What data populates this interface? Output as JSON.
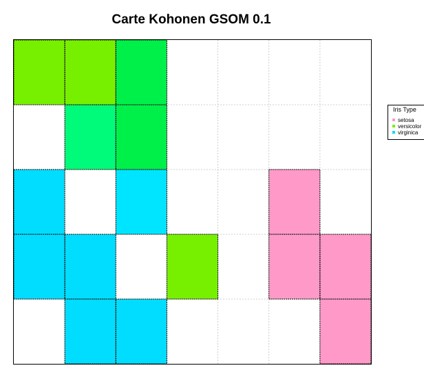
{
  "chart_data": {
    "type": "heatmap",
    "title": "Carte Kohonen GSOM 0.1",
    "xlabel": "",
    "ylabel": "",
    "grid": true,
    "ncols": 7,
    "nrows": 5,
    "legend_position": "right",
    "legend": {
      "title": "Iris Type",
      "entries": [
        {
          "label": "setosa",
          "color": "#FF99C7"
        },
        {
          "label": "versicolor",
          "color": "#77F000"
        },
        {
          "label": "virginica",
          "color": "#00DDFF"
        }
      ]
    },
    "cells": [
      {
        "row": 1,
        "col": 1,
        "color": "#77F000"
      },
      {
        "row": 1,
        "col": 2,
        "color": "#77F000"
      },
      {
        "row": 1,
        "col": 3,
        "color": "#00F04A"
      },
      {
        "row": 2,
        "col": 2,
        "color": "#00FA7A"
      },
      {
        "row": 2,
        "col": 3,
        "color": "#00F04A"
      },
      {
        "row": 3,
        "col": 1,
        "color": "#00DDFF"
      },
      {
        "row": 3,
        "col": 3,
        "color": "#00E5FF"
      },
      {
        "row": 3,
        "col": 6,
        "color": "#FF99C7"
      },
      {
        "row": 4,
        "col": 1,
        "color": "#00DDFF"
      },
      {
        "row": 4,
        "col": 2,
        "color": "#00DDFF"
      },
      {
        "row": 4,
        "col": 4,
        "color": "#77F000"
      },
      {
        "row": 4,
        "col": 6,
        "color": "#FF99C7"
      },
      {
        "row": 4,
        "col": 7,
        "color": "#FF99C7"
      },
      {
        "row": 5,
        "col": 2,
        "color": "#00DDFF"
      },
      {
        "row": 5,
        "col": 3,
        "color": "#00DDFF"
      },
      {
        "row": 5,
        "col": 7,
        "color": "#FF99C7"
      }
    ]
  }
}
